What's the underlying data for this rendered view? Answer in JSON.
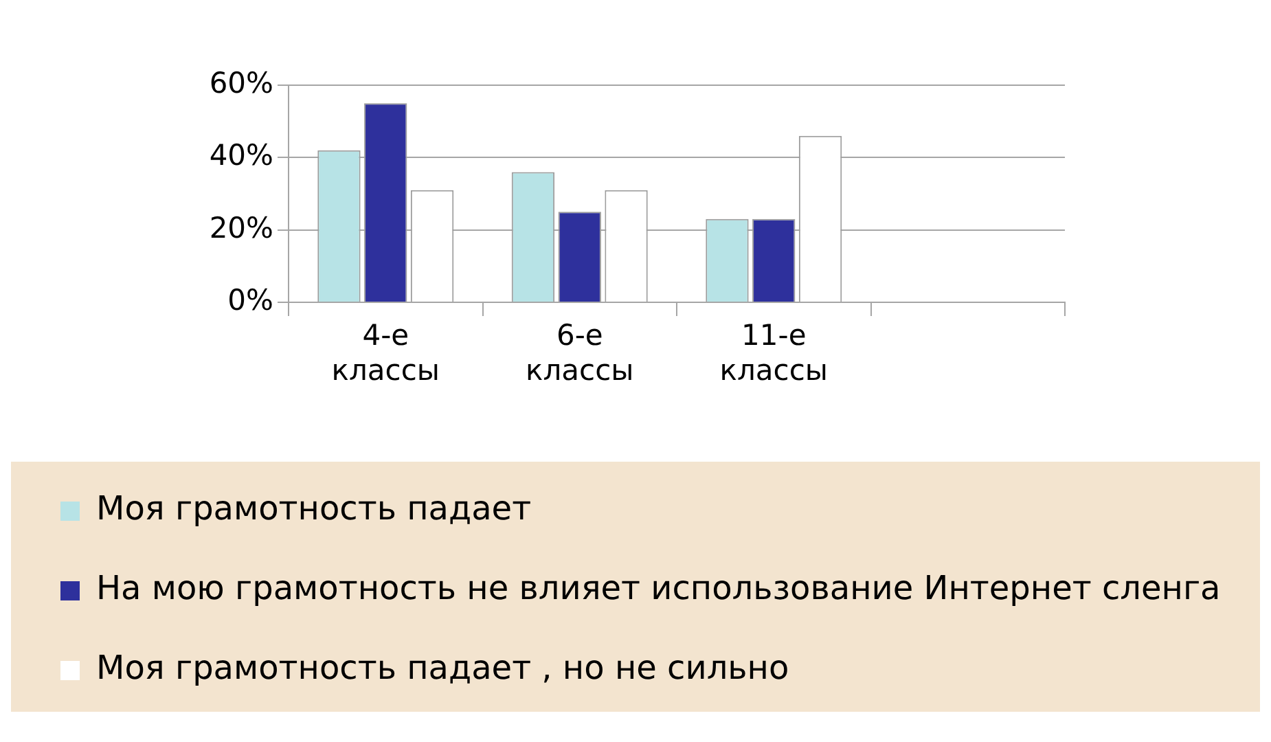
{
  "chart_data": {
    "type": "bar",
    "categories": [
      "4-е классы",
      "6-е классы",
      "11-е классы",
      null
    ],
    "series": [
      {
        "name": "Моя грамотность падает",
        "color": "#b7e3e6",
        "values": [
          42,
          36,
          23,
          null
        ]
      },
      {
        "name": "На мою грамотность не влияет использование Интернет сленга",
        "color": "#2e309c",
        "values": [
          55,
          25,
          23,
          null
        ]
      },
      {
        "name": "Моя грамотность падает , но не сильно",
        "color": "#ffffff",
        "values": [
          31,
          31,
          46,
          null
        ]
      }
    ],
    "ylim": [
      0,
      60
    ],
    "yticks": [
      {
        "value": 0,
        "label": "0%"
      },
      {
        "value": 20,
        "label": "20%"
      },
      {
        "value": 40,
        "label": "40%"
      },
      {
        "value": 60,
        "label": "60%"
      }
    ],
    "grid": "y",
    "legend": "bottom"
  }
}
